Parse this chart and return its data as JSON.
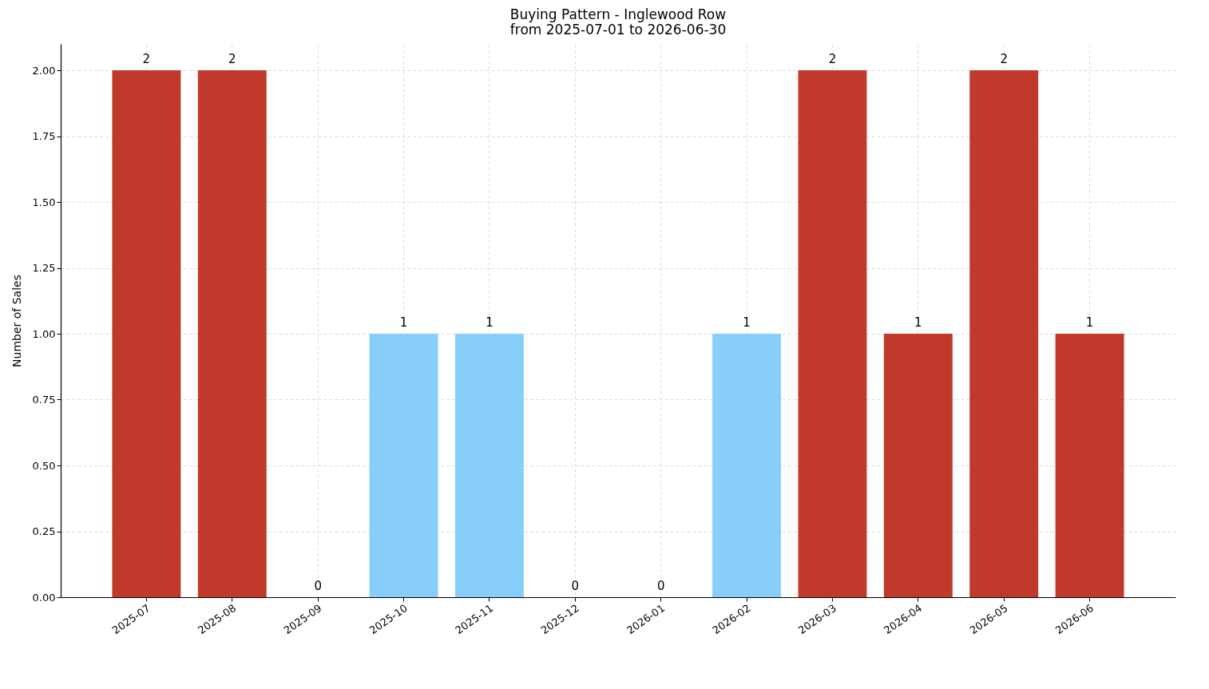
{
  "chart_data": {
    "type": "bar",
    "title": "Buying Pattern - Inglewood Row",
    "subtitle": "from 2025-07-01 to 2026-06-30",
    "ylabel": "Number of Sales",
    "categories": [
      "2025-07",
      "2025-08",
      "2025-09",
      "2025-10",
      "2025-11",
      "2025-12",
      "2026-01",
      "2026-02",
      "2026-03",
      "2026-04",
      "2026-05",
      "2026-06"
    ],
    "values": [
      2,
      2,
      0,
      1,
      1,
      0,
      0,
      1,
      2,
      1,
      2,
      1
    ],
    "colors": [
      "#c0392b",
      "#c0392b",
      "#c0392b",
      "#87cefa",
      "#87cefa",
      "#c0392b",
      "#c0392b",
      "#87cefa",
      "#c0392b",
      "#c0392b",
      "#c0392b",
      "#c0392b"
    ],
    "ylim": [
      0,
      2.1
    ],
    "yticks": [
      {
        "value": 0,
        "label": "0.00"
      },
      {
        "value": 0.25,
        "label": "0.25"
      },
      {
        "value": 0.5,
        "label": "0.50"
      },
      {
        "value": 0.75,
        "label": "0.75"
      },
      {
        "value": 1,
        "label": "1.00"
      },
      {
        "value": 1.25,
        "label": "1.25"
      },
      {
        "value": 1.5,
        "label": "1.50"
      },
      {
        "value": 1.75,
        "label": "1.75"
      },
      {
        "value": 2,
        "label": "2.00"
      }
    ],
    "grid": true,
    "data_labels": true
  }
}
